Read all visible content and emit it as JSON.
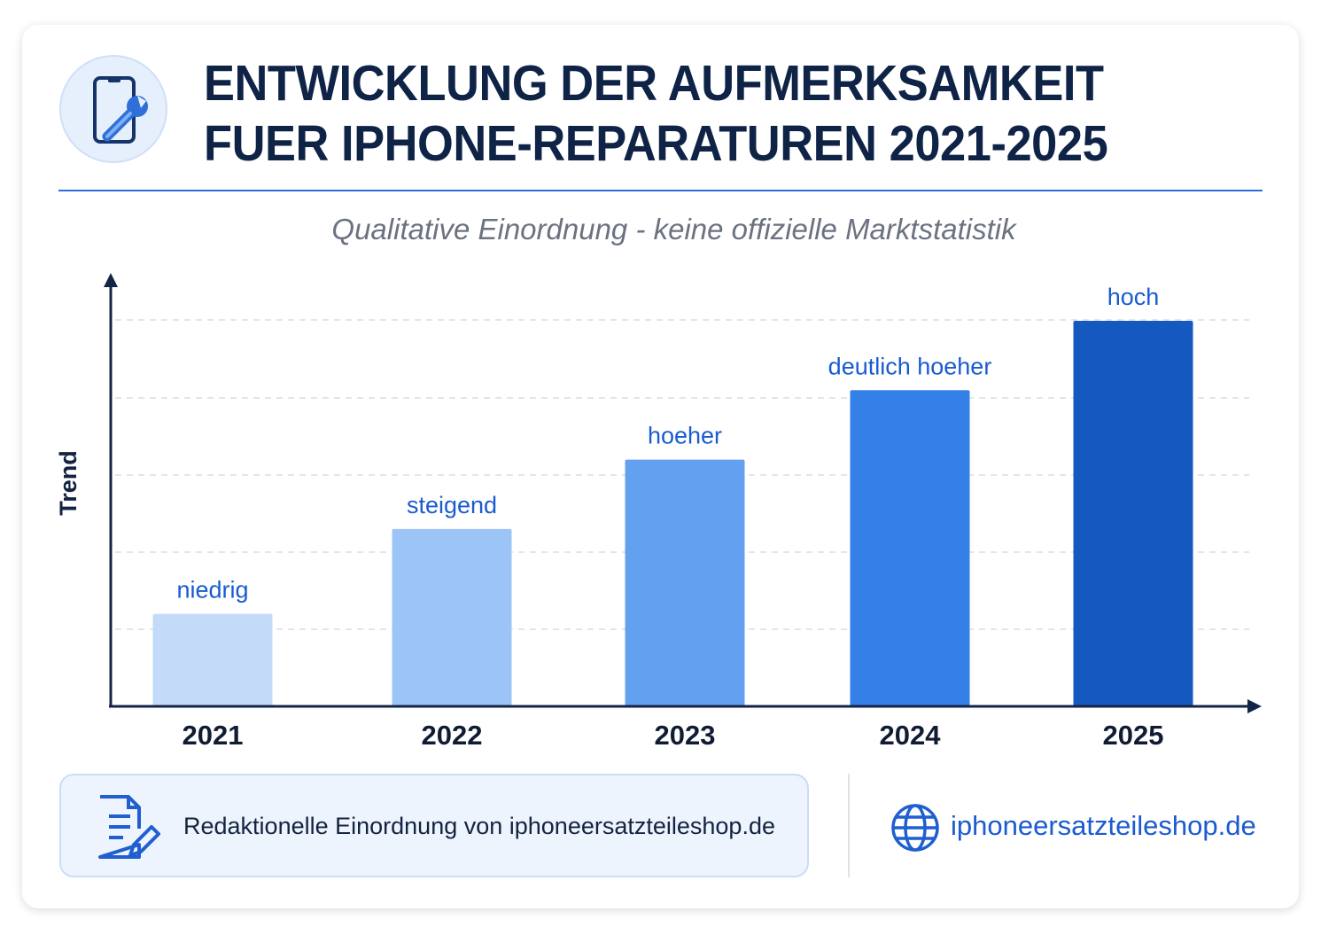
{
  "header": {
    "title_line1": "ENTWICKLUNG DER AUFMERKSAMKEIT",
    "title_line2": "FUER IPHONE-REPARATUREN 2021-2025",
    "subtitle": "Qualitative Einordnung - keine offizielle Marktstatistik",
    "icon": "phone-wrench-icon"
  },
  "chart_data": {
    "type": "bar",
    "title": "ENTWICKLUNG DER AUFMERKSAMKEIT FUER IPHONE-REPARATUREN 2021-2025",
    "subtitle": "Qualitative Einordnung - keine offizielle Marktstatistik",
    "ylabel": "Trend",
    "xlabel": "",
    "categories": [
      "2021",
      "2022",
      "2023",
      "2024",
      "2025"
    ],
    "values": [
      1.2,
      2.3,
      3.2,
      4.1,
      5.0
    ],
    "data_labels": [
      "niedrig",
      "steigend",
      "hoeher",
      "deutlich hoeher",
      "hoch"
    ],
    "ylim": [
      0,
      5.6
    ],
    "y_ticks_shown": false,
    "grid": "horizontal dashed",
    "colors": [
      "#c3dbf8",
      "#9dc4f7",
      "#63a0f0",
      "#3580e8",
      "#1458c0"
    ],
    "label_color": "#1a5bd0"
  },
  "footer": {
    "note": "Redaktionelle Einordnung von iphoneersatzteileshop.de",
    "site": "iphoneersatzteileshop.de",
    "note_icon": "document-edit-icon",
    "site_icon": "globe-icon"
  }
}
